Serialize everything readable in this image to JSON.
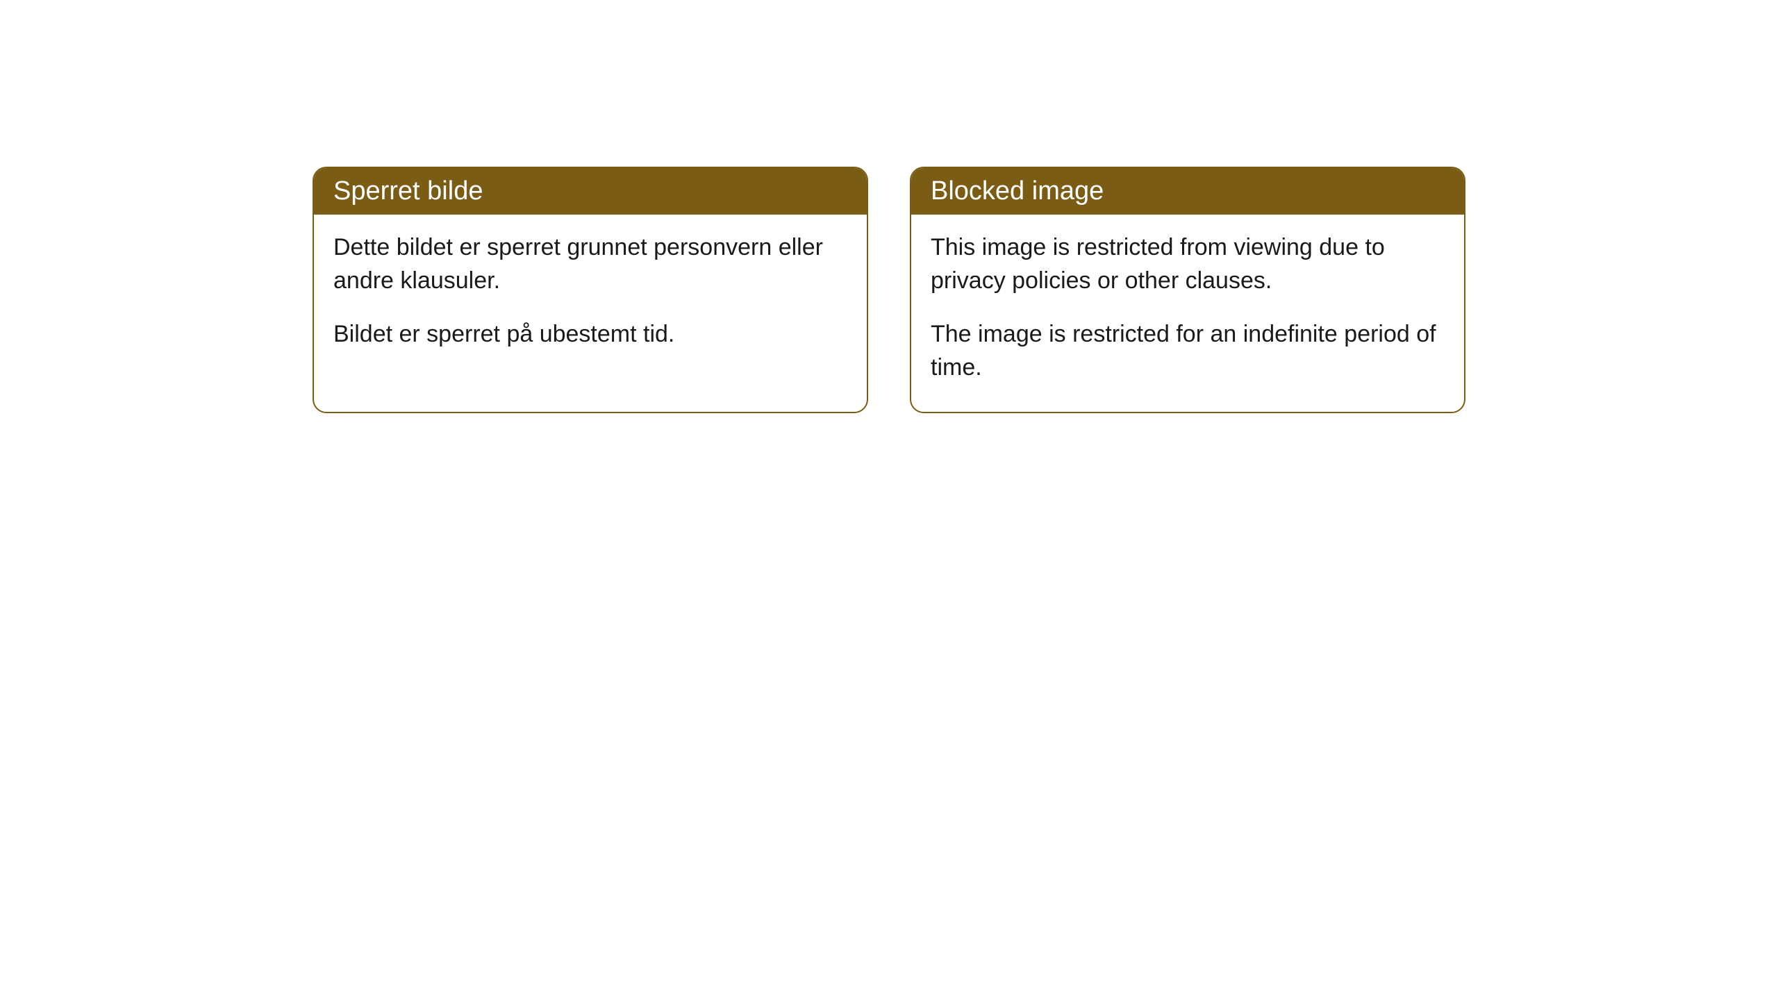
{
  "cards": [
    {
      "header": "Sperret bilde",
      "paragraph1": "Dette bildet er sperret grunnet personvern eller andre klausuler.",
      "paragraph2": "Bildet er sperret på ubestemt tid."
    },
    {
      "header": "Blocked image",
      "paragraph1": "This image is restricted from viewing due to privacy policies or other clauses.",
      "paragraph2": "The image is restricted for an indefinite period of time."
    }
  ],
  "style": {
    "header_bg_color": "#7a5c14",
    "header_text_color": "#ffffff",
    "border_color": "#7a5c14",
    "body_text_color": "#1a1a1a",
    "background_color": "#ffffff",
    "border_radius": 20,
    "header_fontsize": 38,
    "body_fontsize": 34
  }
}
